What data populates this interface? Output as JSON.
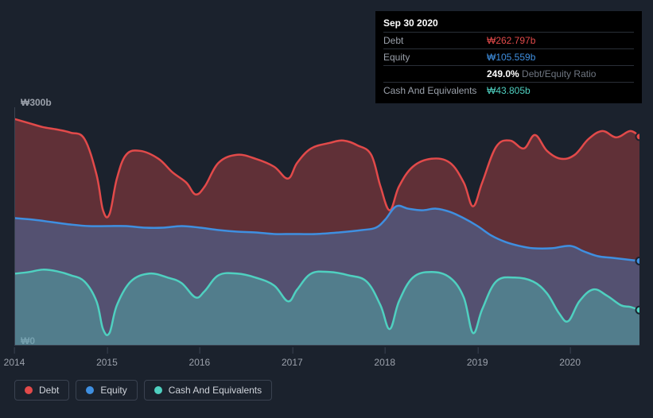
{
  "tooltip": {
    "date": "Sep 30 2020",
    "rows": {
      "debt": {
        "label": "Debt",
        "value": "₩262.797b"
      },
      "equity": {
        "label": "Equity",
        "value": "₩105.559b"
      },
      "ratio": {
        "pct": "249.0%",
        "label": "Debt/Equity Ratio"
      },
      "cash": {
        "label": "Cash And Equivalents",
        "value": "₩43.805b"
      }
    }
  },
  "y_axis": {
    "top": "₩300b",
    "bottom": "₩0",
    "min": 0,
    "max": 300
  },
  "x_axis": {
    "labels": [
      "2014",
      "2015",
      "2016",
      "2017",
      "2018",
      "2019",
      "2020"
    ],
    "min": 2014.0,
    "max": 2020.75
  },
  "legend": {
    "debt": {
      "label": "Debt",
      "color": "#e24a4a"
    },
    "equity": {
      "label": "Equity",
      "color": "#3f8fe0"
    },
    "cash": {
      "label": "Cash And Equivalents",
      "color": "#4fd0c0"
    }
  },
  "chart": {
    "type": "area",
    "background_color": "#1b222d",
    "grid_color": "#3a4250",
    "area_opacity": 0.35,
    "line_width": 2.5,
    "series": {
      "debt": {
        "color": "#e24a4a",
        "data": [
          [
            2014.0,
            285
          ],
          [
            2014.15,
            280
          ],
          [
            2014.3,
            275
          ],
          [
            2014.45,
            272
          ],
          [
            2014.6,
            268
          ],
          [
            2014.75,
            260
          ],
          [
            2014.88,
            215
          ],
          [
            2014.95,
            170
          ],
          [
            2015.02,
            165
          ],
          [
            2015.1,
            210
          ],
          [
            2015.2,
            240
          ],
          [
            2015.35,
            245
          ],
          [
            2015.55,
            235
          ],
          [
            2015.7,
            218
          ],
          [
            2015.85,
            205
          ],
          [
            2015.95,
            190
          ],
          [
            2016.05,
            200
          ],
          [
            2016.2,
            230
          ],
          [
            2016.4,
            240
          ],
          [
            2016.6,
            235
          ],
          [
            2016.8,
            225
          ],
          [
            2016.95,
            210
          ],
          [
            2017.05,
            230
          ],
          [
            2017.2,
            248
          ],
          [
            2017.4,
            255
          ],
          [
            2017.55,
            258
          ],
          [
            2017.7,
            252
          ],
          [
            2017.85,
            240
          ],
          [
            2017.95,
            200
          ],
          [
            2018.05,
            170
          ],
          [
            2018.15,
            200
          ],
          [
            2018.3,
            225
          ],
          [
            2018.5,
            235
          ],
          [
            2018.7,
            230
          ],
          [
            2018.85,
            205
          ],
          [
            2018.95,
            175
          ],
          [
            2019.05,
            205
          ],
          [
            2019.2,
            250
          ],
          [
            2019.35,
            258
          ],
          [
            2019.5,
            248
          ],
          [
            2019.62,
            265
          ],
          [
            2019.75,
            245
          ],
          [
            2019.9,
            235
          ],
          [
            2020.05,
            240
          ],
          [
            2020.2,
            260
          ],
          [
            2020.35,
            270
          ],
          [
            2020.5,
            262
          ],
          [
            2020.65,
            270
          ],
          [
            2020.75,
            263
          ]
        ]
      },
      "equity": {
        "color": "#3f8fe0",
        "data": [
          [
            2014.0,
            160
          ],
          [
            2014.2,
            158
          ],
          [
            2014.4,
            155
          ],
          [
            2014.6,
            152
          ],
          [
            2014.8,
            150
          ],
          [
            2015.0,
            150
          ],
          [
            2015.2,
            150
          ],
          [
            2015.4,
            148
          ],
          [
            2015.6,
            148
          ],
          [
            2015.8,
            150
          ],
          [
            2016.0,
            148
          ],
          [
            2016.2,
            145
          ],
          [
            2016.4,
            143
          ],
          [
            2016.6,
            142
          ],
          [
            2016.8,
            140
          ],
          [
            2017.0,
            140
          ],
          [
            2017.25,
            140
          ],
          [
            2017.5,
            142
          ],
          [
            2017.75,
            145
          ],
          [
            2017.9,
            148
          ],
          [
            2018.0,
            158
          ],
          [
            2018.12,
            175
          ],
          [
            2018.25,
            172
          ],
          [
            2018.4,
            170
          ],
          [
            2018.55,
            172
          ],
          [
            2018.7,
            168
          ],
          [
            2018.85,
            160
          ],
          [
            2019.0,
            150
          ],
          [
            2019.15,
            138
          ],
          [
            2019.3,
            130
          ],
          [
            2019.45,
            125
          ],
          [
            2019.6,
            122
          ],
          [
            2019.8,
            122
          ],
          [
            2020.0,
            125
          ],
          [
            2020.15,
            118
          ],
          [
            2020.3,
            112
          ],
          [
            2020.45,
            110
          ],
          [
            2020.6,
            108
          ],
          [
            2020.75,
            106
          ]
        ]
      },
      "cash": {
        "color": "#4fd0c0",
        "data": [
          [
            2014.0,
            90
          ],
          [
            2014.15,
            92
          ],
          [
            2014.3,
            95
          ],
          [
            2014.45,
            93
          ],
          [
            2014.6,
            88
          ],
          [
            2014.75,
            80
          ],
          [
            2014.88,
            55
          ],
          [
            2014.95,
            20
          ],
          [
            2015.02,
            15
          ],
          [
            2015.1,
            50
          ],
          [
            2015.25,
            80
          ],
          [
            2015.45,
            90
          ],
          [
            2015.65,
            85
          ],
          [
            2015.8,
            78
          ],
          [
            2015.95,
            60
          ],
          [
            2016.05,
            68
          ],
          [
            2016.2,
            88
          ],
          [
            2016.4,
            90
          ],
          [
            2016.6,
            85
          ],
          [
            2016.8,
            75
          ],
          [
            2016.95,
            55
          ],
          [
            2017.05,
            70
          ],
          [
            2017.2,
            90
          ],
          [
            2017.4,
            92
          ],
          [
            2017.6,
            88
          ],
          [
            2017.8,
            80
          ],
          [
            2017.95,
            50
          ],
          [
            2018.05,
            20
          ],
          [
            2018.15,
            55
          ],
          [
            2018.3,
            85
          ],
          [
            2018.5,
            92
          ],
          [
            2018.7,
            85
          ],
          [
            2018.85,
            60
          ],
          [
            2018.95,
            15
          ],
          [
            2019.05,
            45
          ],
          [
            2019.2,
            80
          ],
          [
            2019.4,
            85
          ],
          [
            2019.6,
            80
          ],
          [
            2019.75,
            65
          ],
          [
            2019.88,
            40
          ],
          [
            2019.98,
            30
          ],
          [
            2020.1,
            55
          ],
          [
            2020.25,
            70
          ],
          [
            2020.4,
            62
          ],
          [
            2020.55,
            50
          ],
          [
            2020.65,
            48
          ],
          [
            2020.75,
            44
          ]
        ]
      }
    }
  }
}
